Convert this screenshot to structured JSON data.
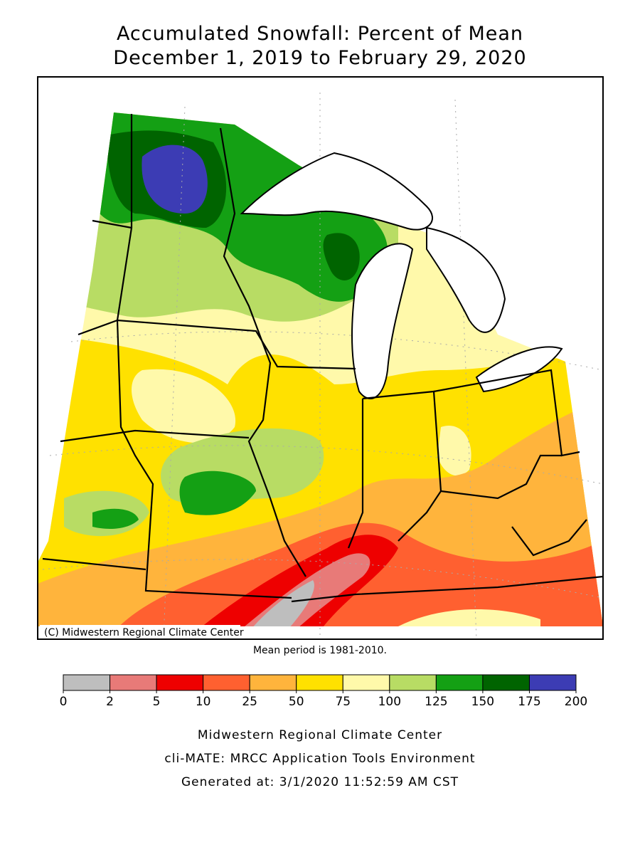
{
  "header": {
    "title_line1": "Accumulated Snowfall: Percent of Mean",
    "title_line2": "December 1, 2019 to February 29, 2020"
  },
  "map": {
    "copyright": "(C) Midwestern Regional Climate Center",
    "note": "Mean period is 1981-2010."
  },
  "legend": {
    "boundaries": [
      0,
      2,
      5,
      10,
      25,
      50,
      75,
      100,
      125,
      150,
      175,
      200
    ],
    "colors": [
      "#bebebe",
      "#e87a78",
      "#ee0000",
      "#ff6030",
      "#ffb43c",
      "#ffe100",
      "#fff9aa",
      "#b8dc64",
      "#14a014",
      "#006400",
      "#3c3cb4"
    ]
  },
  "footer": {
    "line1": "Midwestern Regional Climate Center",
    "line2": "cli-MATE: MRCC Application Tools Environment",
    "line3": "Generated at: 3/1/2020 11:52:59 AM CST"
  }
}
